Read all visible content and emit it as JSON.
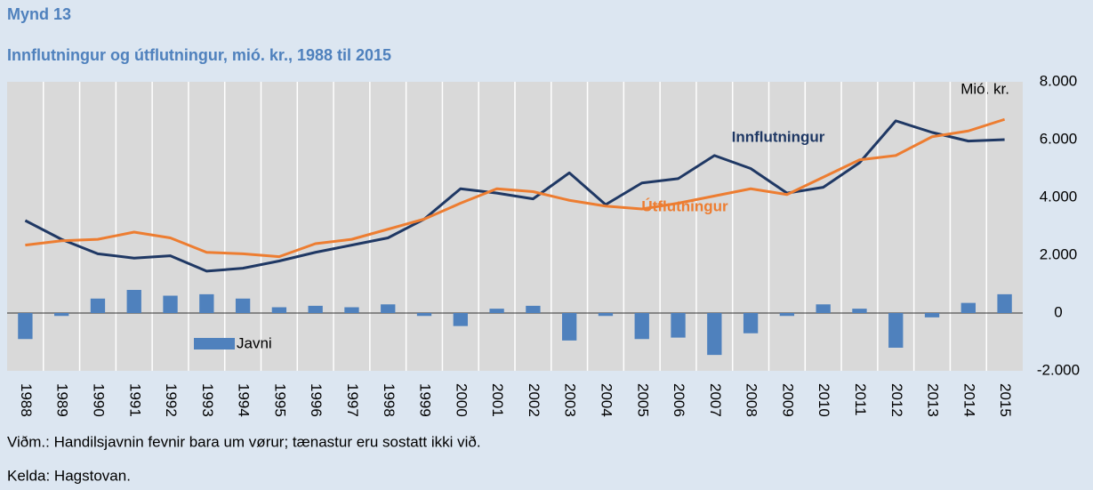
{
  "chart_data": {
    "type": "line",
    "figure_label": "Mynd 13",
    "title": "Innflutningur og útflutningur, mió. kr., 1988 til 2015",
    "y_unit_label": "Mió. kr.",
    "categories": [
      "1988",
      "1989",
      "1990",
      "1991",
      "1992",
      "1993",
      "1994",
      "1995",
      "1996",
      "1997",
      "1998",
      "1999",
      "2000",
      "2001",
      "2002",
      "2003",
      "2004",
      "2005",
      "2006",
      "2007",
      "2008",
      "2009",
      "2010",
      "2011",
      "2012",
      "2013",
      "2014",
      "2015"
    ],
    "series": [
      {
        "name": "Innflutningur",
        "type": "line",
        "color": "#1f3864",
        "values": [
          3200,
          2550,
          2050,
          1900,
          1980,
          1450,
          1550,
          1800,
          2100,
          2350,
          2600,
          3250,
          4300,
          4150,
          3950,
          4850,
          3750,
          4500,
          4650,
          5450,
          5000,
          4150,
          4350,
          5200,
          6650,
          6250,
          5950,
          6000
        ]
      },
      {
        "name": "Útflutningur",
        "type": "line",
        "color": "#ed7d31",
        "values": [
          2350,
          2500,
          2550,
          2800,
          2600,
          2100,
          2050,
          1950,
          2400,
          2550,
          2900,
          3250,
          3800,
          4300,
          4200,
          3900,
          3700,
          3600,
          3800,
          4050,
          4300,
          4100,
          4700,
          5300,
          5450,
          6100,
          6300,
          6700
        ]
      },
      {
        "name": "Javni",
        "type": "bar",
        "color": "#4f81bd",
        "values": [
          -900,
          -100,
          500,
          800,
          600,
          650,
          500,
          200,
          250,
          200,
          300,
          -100,
          -450,
          150,
          250,
          -950,
          -100,
          -900,
          -850,
          -1450,
          -700,
          -100,
          300,
          150,
          -1200,
          -150,
          350,
          650
        ]
      }
    ],
    "ylim": [
      -2000,
      8000
    ],
    "yticks": [
      {
        "value": -2000,
        "label": "-2.000"
      },
      0,
      {
        "value": 2000,
        "label": "2.000"
      },
      {
        "value": 4000,
        "label": "4.000"
      },
      {
        "value": 6000,
        "label": "6.000"
      },
      {
        "value": 8000,
        "label": "8.000"
      }
    ],
    "notes": [
      "Viðm.: Handilsjavnin fevnir bara um vørur; tænastur eru sostatt ikki við.",
      "Kelda: Hagstovan."
    ]
  }
}
